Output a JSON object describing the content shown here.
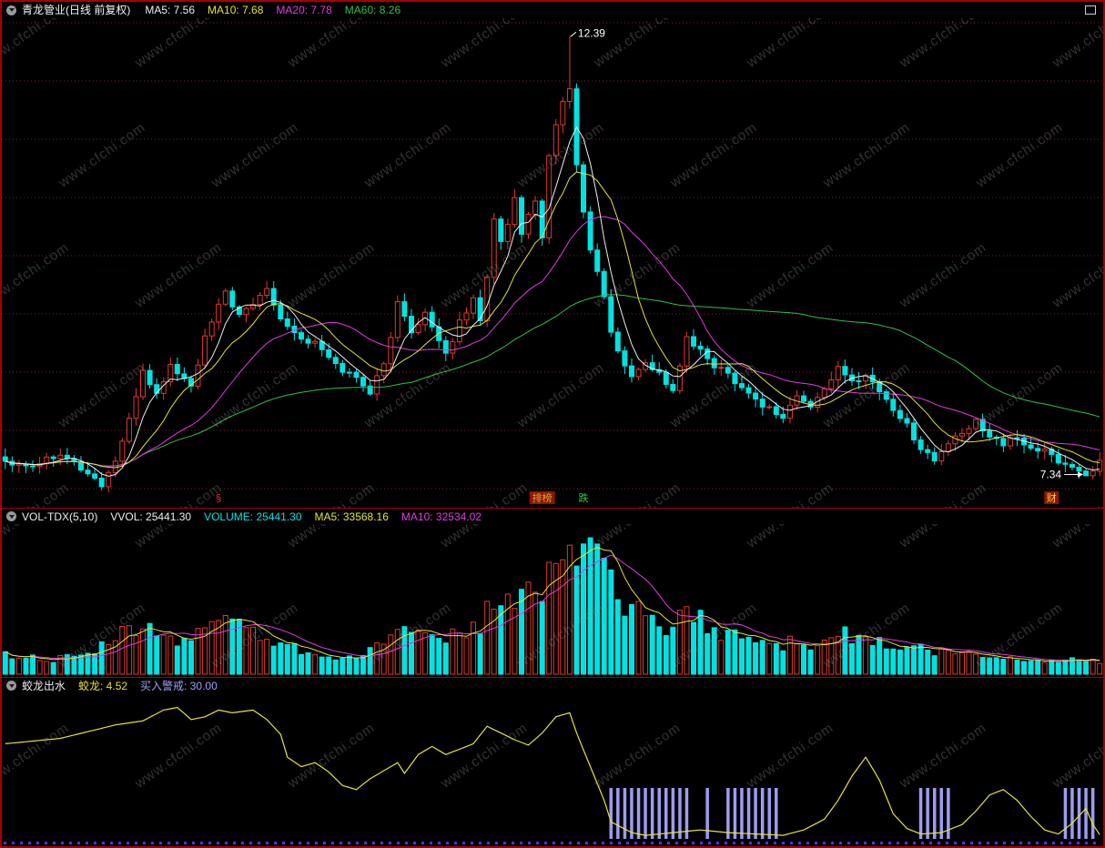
{
  "colors": {
    "up": "#e03a2e",
    "down": "#00e2e2",
    "white": "#eeeeee",
    "yellow": "#e3e33a",
    "magenta": "#e23ae2",
    "green": "#2fbf4a",
    "signal": "#9c9cf0",
    "grid": "#7c2222",
    "frame": "#a40000",
    "dots": "#3a3af2",
    "watermark": "#a5a5a5"
  },
  "watermark": {
    "text": "www.cfchi.com"
  },
  "headers": {
    "main": {
      "title": "青龙管业(日线 前复权)",
      "ma5": "MA5: 7.56",
      "ma10": "MA10: 7.68",
      "ma20": "MA20: 7.78",
      "ma60": "MA60: 8.26"
    },
    "vol": {
      "name": "VOL-TDX(5,10)",
      "vvol": "VVOL: 25441.30",
      "volume": "VOLUME: 25441.30",
      "ma5": "MA5: 33568.16",
      "ma10": "MA10: 32534.02"
    },
    "ind": {
      "name": "蛟龙出水",
      "value": "蛟龙: 4.52",
      "alert": "买入警戒: 30.00"
    }
  },
  "chart_data": [
    {
      "type": "candlestick",
      "title": "青龙管业 日线 前复权",
      "n_points": 160,
      "price_axis_range": [
        7.0,
        12.55
      ],
      "grid": "horizontal-dotted",
      "ma_periods": [
        5,
        10,
        20,
        60
      ],
      "ma_current": {
        "MA5": 7.56,
        "MA10": 7.68,
        "MA20": 7.78,
        "MA60": 8.26
      },
      "peak_annotation": {
        "index": 82,
        "price": 12.39,
        "label": "12.39"
      },
      "low_annotation": {
        "index": 157,
        "price": 7.34,
        "label": "7.34"
      },
      "event_markers": [
        {
          "index": 31,
          "text": "§",
          "type": "plain",
          "color": "#ff2a2a",
          "bg": ""
        },
        {
          "index": 78,
          "text": "排榜",
          "type": "badge",
          "color": "#e0a83a",
          "bg": "#8c1600"
        },
        {
          "index": 84,
          "text": "跌",
          "type": "plain",
          "color": "#30c850",
          "bg": ""
        },
        {
          "index": 152,
          "text": "财",
          "type": "badge",
          "color": "#ffd23a",
          "bg": "#8c1600"
        }
      ],
      "close_anchors": [
        [
          0,
          7.5
        ],
        [
          4,
          7.45
        ],
        [
          8,
          7.6
        ],
        [
          12,
          7.35
        ],
        [
          14,
          7.22
        ],
        [
          16,
          7.5
        ],
        [
          18,
          7.95
        ],
        [
          20,
          8.55
        ],
        [
          22,
          8.25
        ],
        [
          24,
          8.6
        ],
        [
          27,
          8.35
        ],
        [
          29,
          8.9
        ],
        [
          32,
          9.45
        ],
        [
          34,
          9.15
        ],
        [
          36,
          9.3
        ],
        [
          38,
          9.5
        ],
        [
          40,
          9.15
        ],
        [
          43,
          8.9
        ],
        [
          45,
          8.85
        ],
        [
          48,
          8.6
        ],
        [
          51,
          8.45
        ],
        [
          53,
          8.3
        ],
        [
          55,
          8.6
        ],
        [
          57,
          9.3
        ],
        [
          59,
          9.0
        ],
        [
          61,
          9.2
        ],
        [
          63,
          8.85
        ],
        [
          64,
          8.7
        ],
        [
          66,
          9.1
        ],
        [
          68,
          9.35
        ],
        [
          69,
          9.15
        ],
        [
          70,
          9.6
        ],
        [
          71,
          10.3
        ],
        [
          72,
          10.05
        ],
        [
          73,
          10.2
        ],
        [
          74,
          10.5
        ],
        [
          75,
          10.1
        ],
        [
          76,
          10.3
        ],
        [
          77,
          10.45
        ],
        [
          78,
          10.05
        ],
        [
          79,
          11.0
        ],
        [
          80,
          11.4
        ],
        [
          81,
          11.6
        ],
        [
          82,
          11.8
        ],
        [
          83,
          10.9
        ],
        [
          84,
          10.35
        ],
        [
          85,
          9.95
        ],
        [
          86,
          9.65
        ],
        [
          87,
          9.4
        ],
        [
          88,
          8.95
        ],
        [
          90,
          8.6
        ],
        [
          91,
          8.45
        ],
        [
          93,
          8.65
        ],
        [
          95,
          8.5
        ],
        [
          97,
          8.3
        ],
        [
          99,
          8.9
        ],
        [
          101,
          8.75
        ],
        [
          103,
          8.6
        ],
        [
          105,
          8.5
        ],
        [
          107,
          8.35
        ],
        [
          109,
          8.2
        ],
        [
          111,
          8.1
        ],
        [
          113,
          8.0
        ],
        [
          115,
          8.25
        ],
        [
          117,
          8.1
        ],
        [
          119,
          8.35
        ],
        [
          121,
          8.55
        ],
        [
          123,
          8.4
        ],
        [
          125,
          8.5
        ],
        [
          127,
          8.3
        ],
        [
          129,
          8.1
        ],
        [
          131,
          7.9
        ],
        [
          133,
          7.65
        ],
        [
          135,
          7.5
        ],
        [
          137,
          7.7
        ],
        [
          139,
          7.8
        ],
        [
          141,
          7.95
        ],
        [
          143,
          7.8
        ],
        [
          145,
          7.7
        ],
        [
          147,
          7.75
        ],
        [
          149,
          7.65
        ],
        [
          151,
          7.6
        ],
        [
          153,
          7.5
        ],
        [
          155,
          7.42
        ],
        [
          157,
          7.34
        ],
        [
          159,
          7.48
        ]
      ]
    },
    {
      "type": "bar",
      "title": "VOL-TDX(5,10)",
      "current": {
        "VVOL": 25441.3,
        "VOLUME": 25441.3,
        "MA5": 33568.16,
        "MA10": 32534.02
      },
      "ma_periods": [
        5,
        10
      ],
      "units": "percent of panel max",
      "volume_anchors": [
        [
          0,
          14
        ],
        [
          6,
          10
        ],
        [
          12,
          13
        ],
        [
          16,
          26
        ],
        [
          20,
          34
        ],
        [
          24,
          26
        ],
        [
          27,
          22
        ],
        [
          30,
          38
        ],
        [
          32,
          46
        ],
        [
          36,
          30
        ],
        [
          40,
          22
        ],
        [
          44,
          16
        ],
        [
          48,
          13
        ],
        [
          52,
          12
        ],
        [
          55,
          26
        ],
        [
          57,
          34
        ],
        [
          60,
          26
        ],
        [
          63,
          22
        ],
        [
          66,
          30
        ],
        [
          69,
          34
        ],
        [
          71,
          56
        ],
        [
          73,
          48
        ],
        [
          75,
          60
        ],
        [
          77,
          58
        ],
        [
          79,
          72
        ],
        [
          81,
          88
        ],
        [
          82,
          100
        ],
        [
          83,
          78
        ],
        [
          85,
          85
        ],
        [
          87,
          70
        ],
        [
          89,
          58
        ],
        [
          91,
          46
        ],
        [
          93,
          40
        ],
        [
          95,
          36
        ],
        [
          97,
          34
        ],
        [
          99,
          44
        ],
        [
          101,
          38
        ],
        [
          103,
          32
        ],
        [
          105,
          30
        ],
        [
          107,
          26
        ],
        [
          109,
          24
        ],
        [
          111,
          21
        ],
        [
          113,
          20
        ],
        [
          115,
          26
        ],
        [
          117,
          22
        ],
        [
          119,
          26
        ],
        [
          121,
          31
        ],
        [
          123,
          25
        ],
        [
          125,
          27
        ],
        [
          127,
          22
        ],
        [
          129,
          18
        ],
        [
          131,
          17
        ],
        [
          133,
          20
        ],
        [
          135,
          15
        ],
        [
          137,
          16
        ],
        [
          139,
          14
        ],
        [
          141,
          13
        ],
        [
          143,
          12
        ],
        [
          145,
          11
        ],
        [
          147,
          11
        ],
        [
          149,
          10
        ],
        [
          151,
          10
        ],
        [
          153,
          9
        ],
        [
          155,
          10
        ],
        [
          157,
          11
        ],
        [
          159,
          9
        ]
      ]
    },
    {
      "type": "line",
      "title": "蛟龙出水",
      "current": {
        "jiaolong": 4.52,
        "buy_alert_threshold": 30.0
      },
      "range": [
        0,
        100
      ],
      "line_anchors": [
        [
          0,
          72
        ],
        [
          4,
          74
        ],
        [
          8,
          76
        ],
        [
          12,
          81
        ],
        [
          16,
          86
        ],
        [
          20,
          89
        ],
        [
          23,
          97
        ],
        [
          25,
          99
        ],
        [
          27,
          90
        ],
        [
          29,
          92
        ],
        [
          31,
          97
        ],
        [
          33,
          95
        ],
        [
          36,
          97
        ],
        [
          38,
          90
        ],
        [
          40,
          79
        ],
        [
          41,
          62
        ],
        [
          43,
          55
        ],
        [
          45,
          58
        ],
        [
          47,
          51
        ],
        [
          49,
          41
        ],
        [
          51,
          38
        ],
        [
          53,
          46
        ],
        [
          55,
          52
        ],
        [
          57,
          58
        ],
        [
          58,
          50
        ],
        [
          60,
          64
        ],
        [
          62,
          70
        ],
        [
          64,
          64
        ],
        [
          66,
          68
        ],
        [
          68,
          72
        ],
        [
          70,
          85
        ],
        [
          72,
          80
        ],
        [
          74,
          75
        ],
        [
          76,
          71
        ],
        [
          78,
          80
        ],
        [
          80,
          92
        ],
        [
          82,
          95
        ],
        [
          83,
          80
        ],
        [
          85,
          55
        ],
        [
          87,
          30
        ],
        [
          88,
          14
        ],
        [
          91,
          6
        ],
        [
          93,
          4
        ],
        [
          97,
          6
        ],
        [
          101,
          8
        ],
        [
          105,
          6
        ],
        [
          109,
          5
        ],
        [
          113,
          4
        ],
        [
          116,
          8
        ],
        [
          119,
          16
        ],
        [
          121,
          30
        ],
        [
          123,
          48
        ],
        [
          125,
          62
        ],
        [
          127,
          45
        ],
        [
          129,
          20
        ],
        [
          131,
          9
        ],
        [
          133,
          5
        ],
        [
          136,
          6
        ],
        [
          139,
          12
        ],
        [
          141,
          22
        ],
        [
          143,
          34
        ],
        [
          145,
          38
        ],
        [
          147,
          30
        ],
        [
          149,
          18
        ],
        [
          151,
          8
        ],
        [
          153,
          5
        ],
        [
          155,
          13
        ],
        [
          157,
          24
        ],
        [
          158,
          12
        ],
        [
          159,
          4.52
        ]
      ],
      "signal_bar_ranges": [
        [
          88,
          99
        ],
        [
          102,
          102
        ],
        [
          105,
          112
        ],
        [
          133,
          137
        ],
        [
          154,
          158
        ]
      ]
    }
  ]
}
